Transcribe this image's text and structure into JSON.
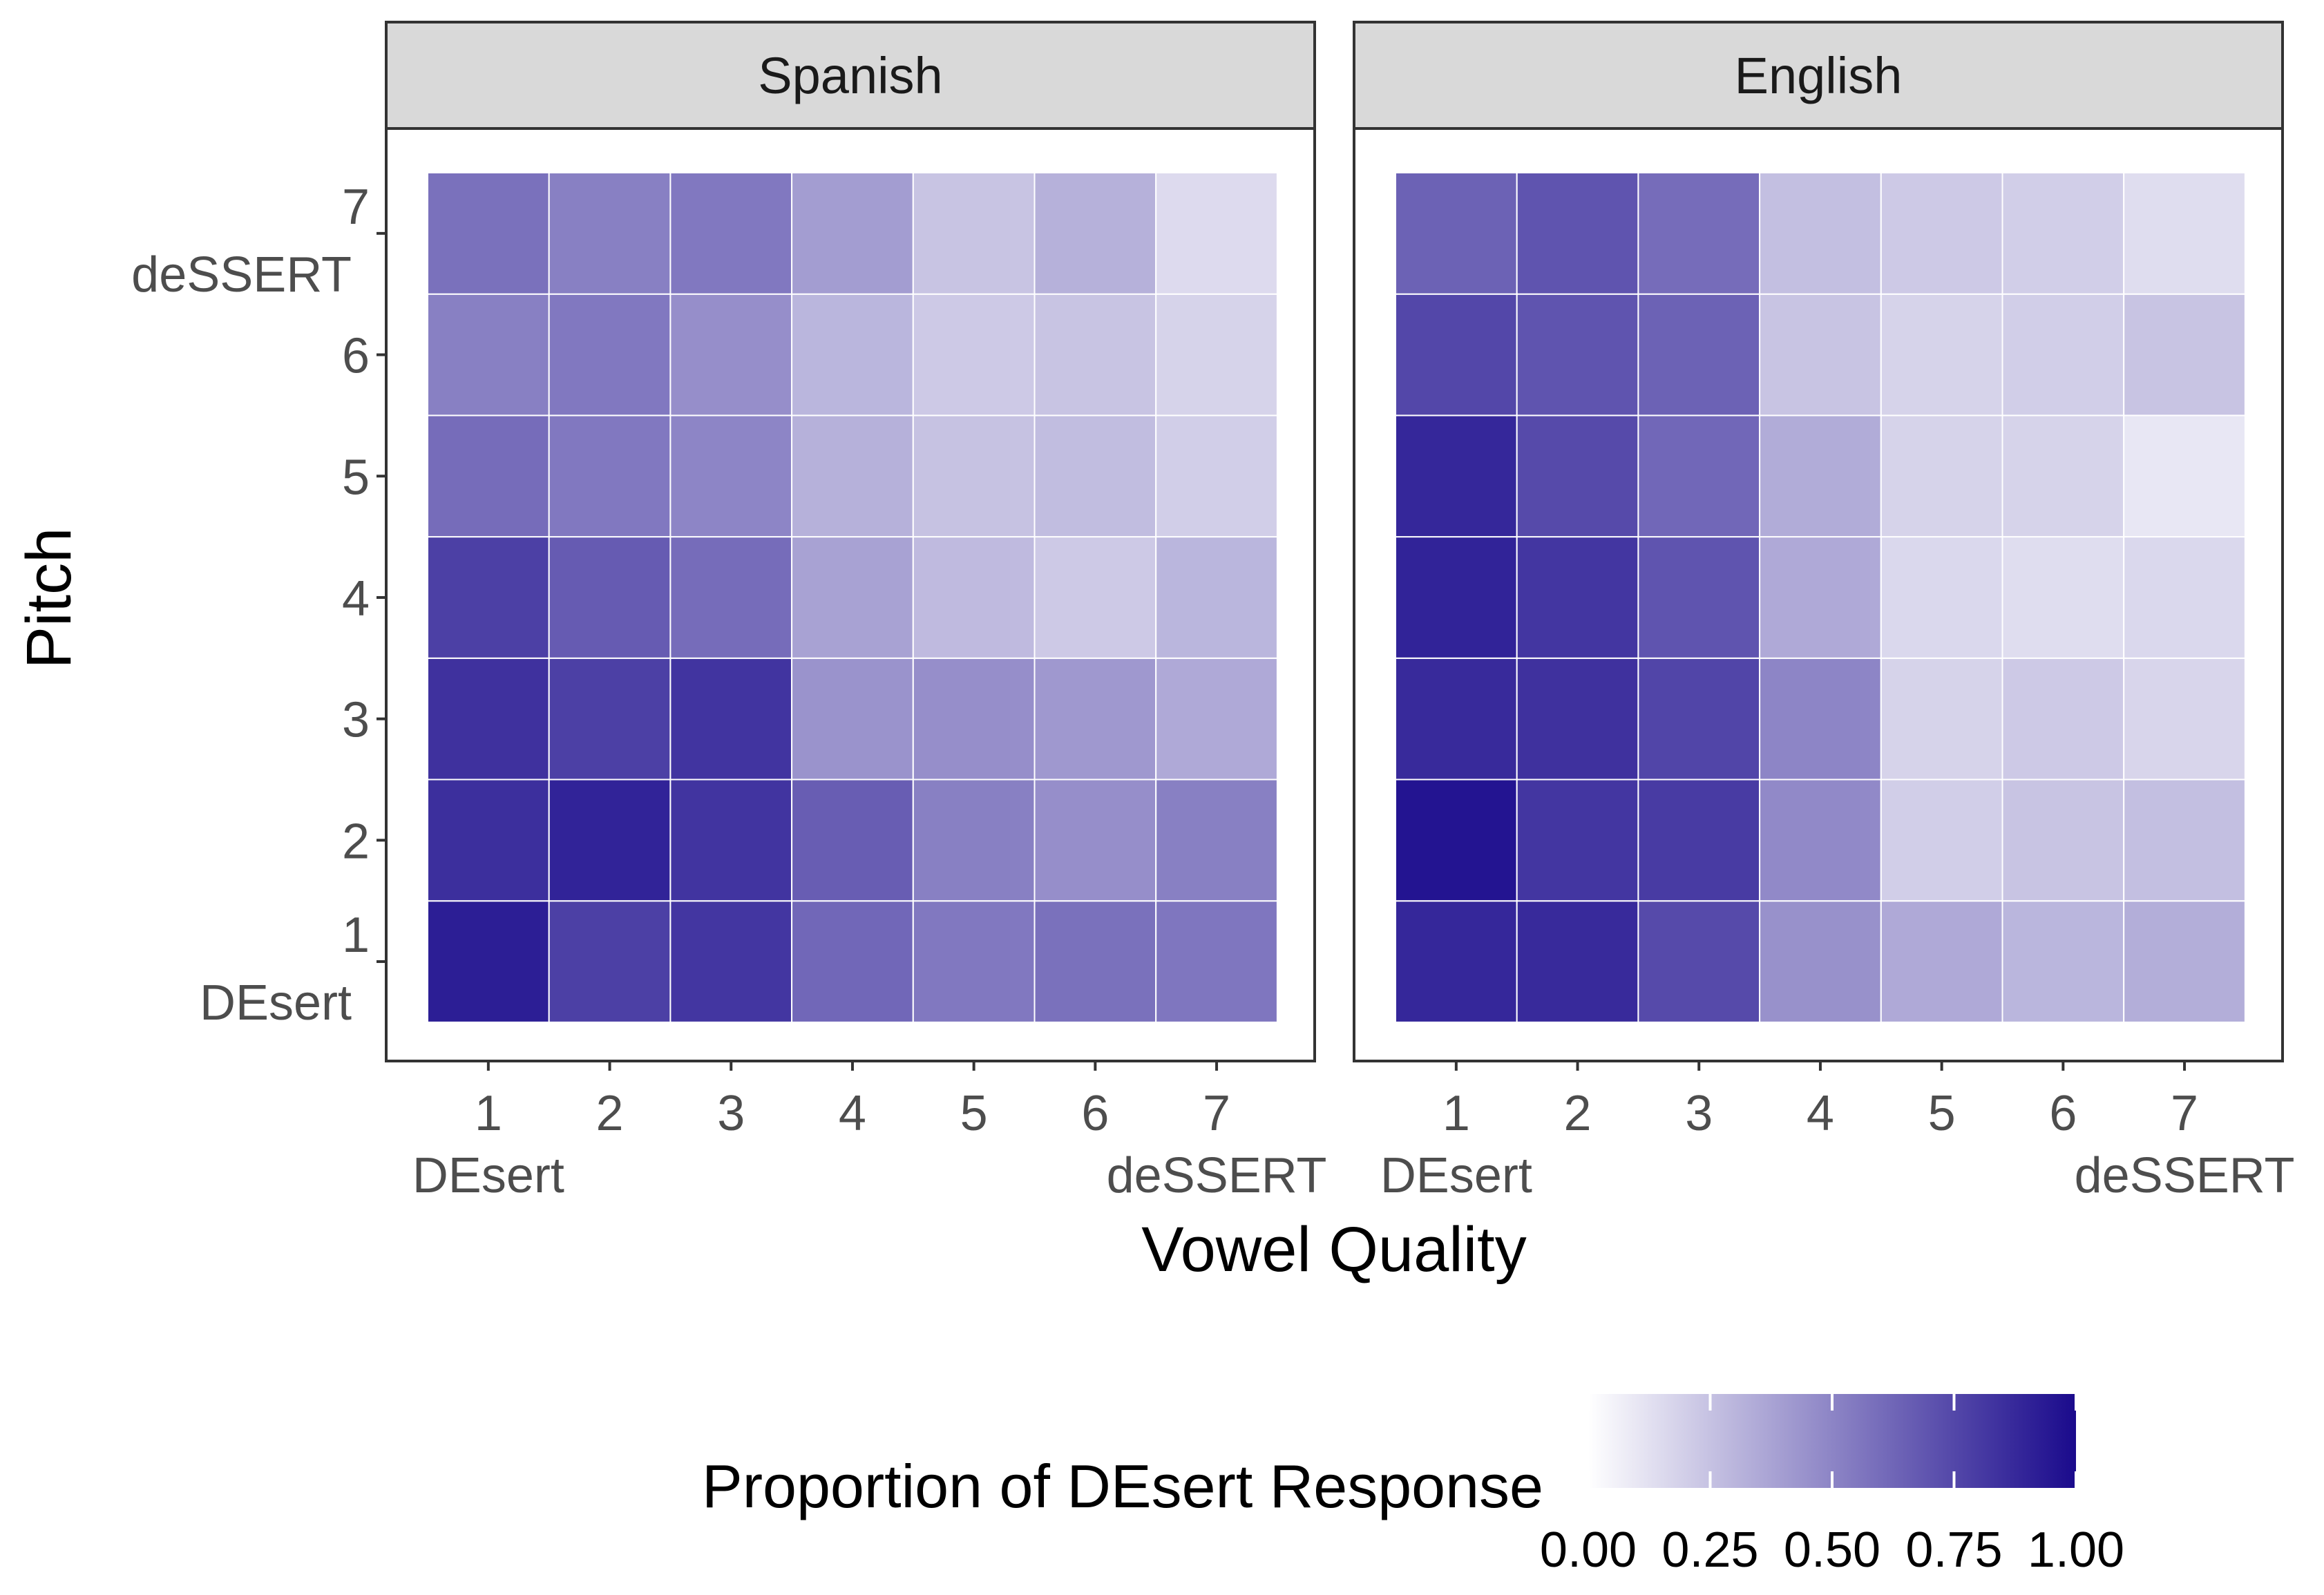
{
  "chart_data": {
    "type": "heatmap",
    "xlabel": "Vowel Quality",
    "ylabel": "Pitch",
    "x_categories": [
      "1",
      "2",
      "3",
      "4",
      "5",
      "6",
      "7"
    ],
    "y_categories": [
      "1",
      "2",
      "3",
      "4",
      "5",
      "6",
      "7"
    ],
    "x_endpoint_labels": {
      "1": "DEsert",
      "7": "deSSERT"
    },
    "y_endpoint_labels": {
      "1": "DEsert",
      "7": "deSSERT"
    },
    "color_scale": {
      "low": "#ffffff",
      "high": "#1a0a8c",
      "limits": [
        0,
        1
      ],
      "breaks": [
        "0.00",
        "0.25",
        "0.50",
        "0.75",
        "1.00"
      ]
    },
    "legend": {
      "title": "Proportion of DEsert Response",
      "position": "bottom"
    },
    "panels": [
      {
        "name": "Spanish",
        "values": [
          [
            0.92,
            0.78,
            0.82,
            0.62,
            0.55,
            0.58,
            0.56
          ],
          [
            0.85,
            0.9,
            0.83,
            0.66,
            0.52,
            0.46,
            0.52
          ],
          [
            0.84,
            0.78,
            0.83,
            0.44,
            0.46,
            0.42,
            0.35
          ],
          [
            0.78,
            0.67,
            0.6,
            0.38,
            0.28,
            0.22,
            0.3
          ],
          [
            0.6,
            0.55,
            0.5,
            0.32,
            0.25,
            0.27,
            0.2
          ],
          [
            0.52,
            0.55,
            0.46,
            0.3,
            0.22,
            0.24,
            0.18
          ],
          [
            0.58,
            0.52,
            0.55,
            0.4,
            0.24,
            0.32,
            0.15
          ]
        ]
      },
      {
        "name": "English",
        "values": [
          [
            0.88,
            0.87,
            0.74,
            0.45,
            0.35,
            0.3,
            0.33
          ],
          [
            0.96,
            0.82,
            0.8,
            0.48,
            0.2,
            0.24,
            0.26
          ],
          [
            0.87,
            0.84,
            0.76,
            0.5,
            0.18,
            0.22,
            0.17
          ],
          [
            0.9,
            0.82,
            0.7,
            0.35,
            0.16,
            0.14,
            0.16
          ],
          [
            0.88,
            0.74,
            0.62,
            0.34,
            0.18,
            0.18,
            0.1
          ],
          [
            0.75,
            0.7,
            0.64,
            0.24,
            0.18,
            0.2,
            0.24
          ],
          [
            0.64,
            0.7,
            0.6,
            0.26,
            0.22,
            0.2,
            0.14
          ]
        ]
      }
    ]
  }
}
